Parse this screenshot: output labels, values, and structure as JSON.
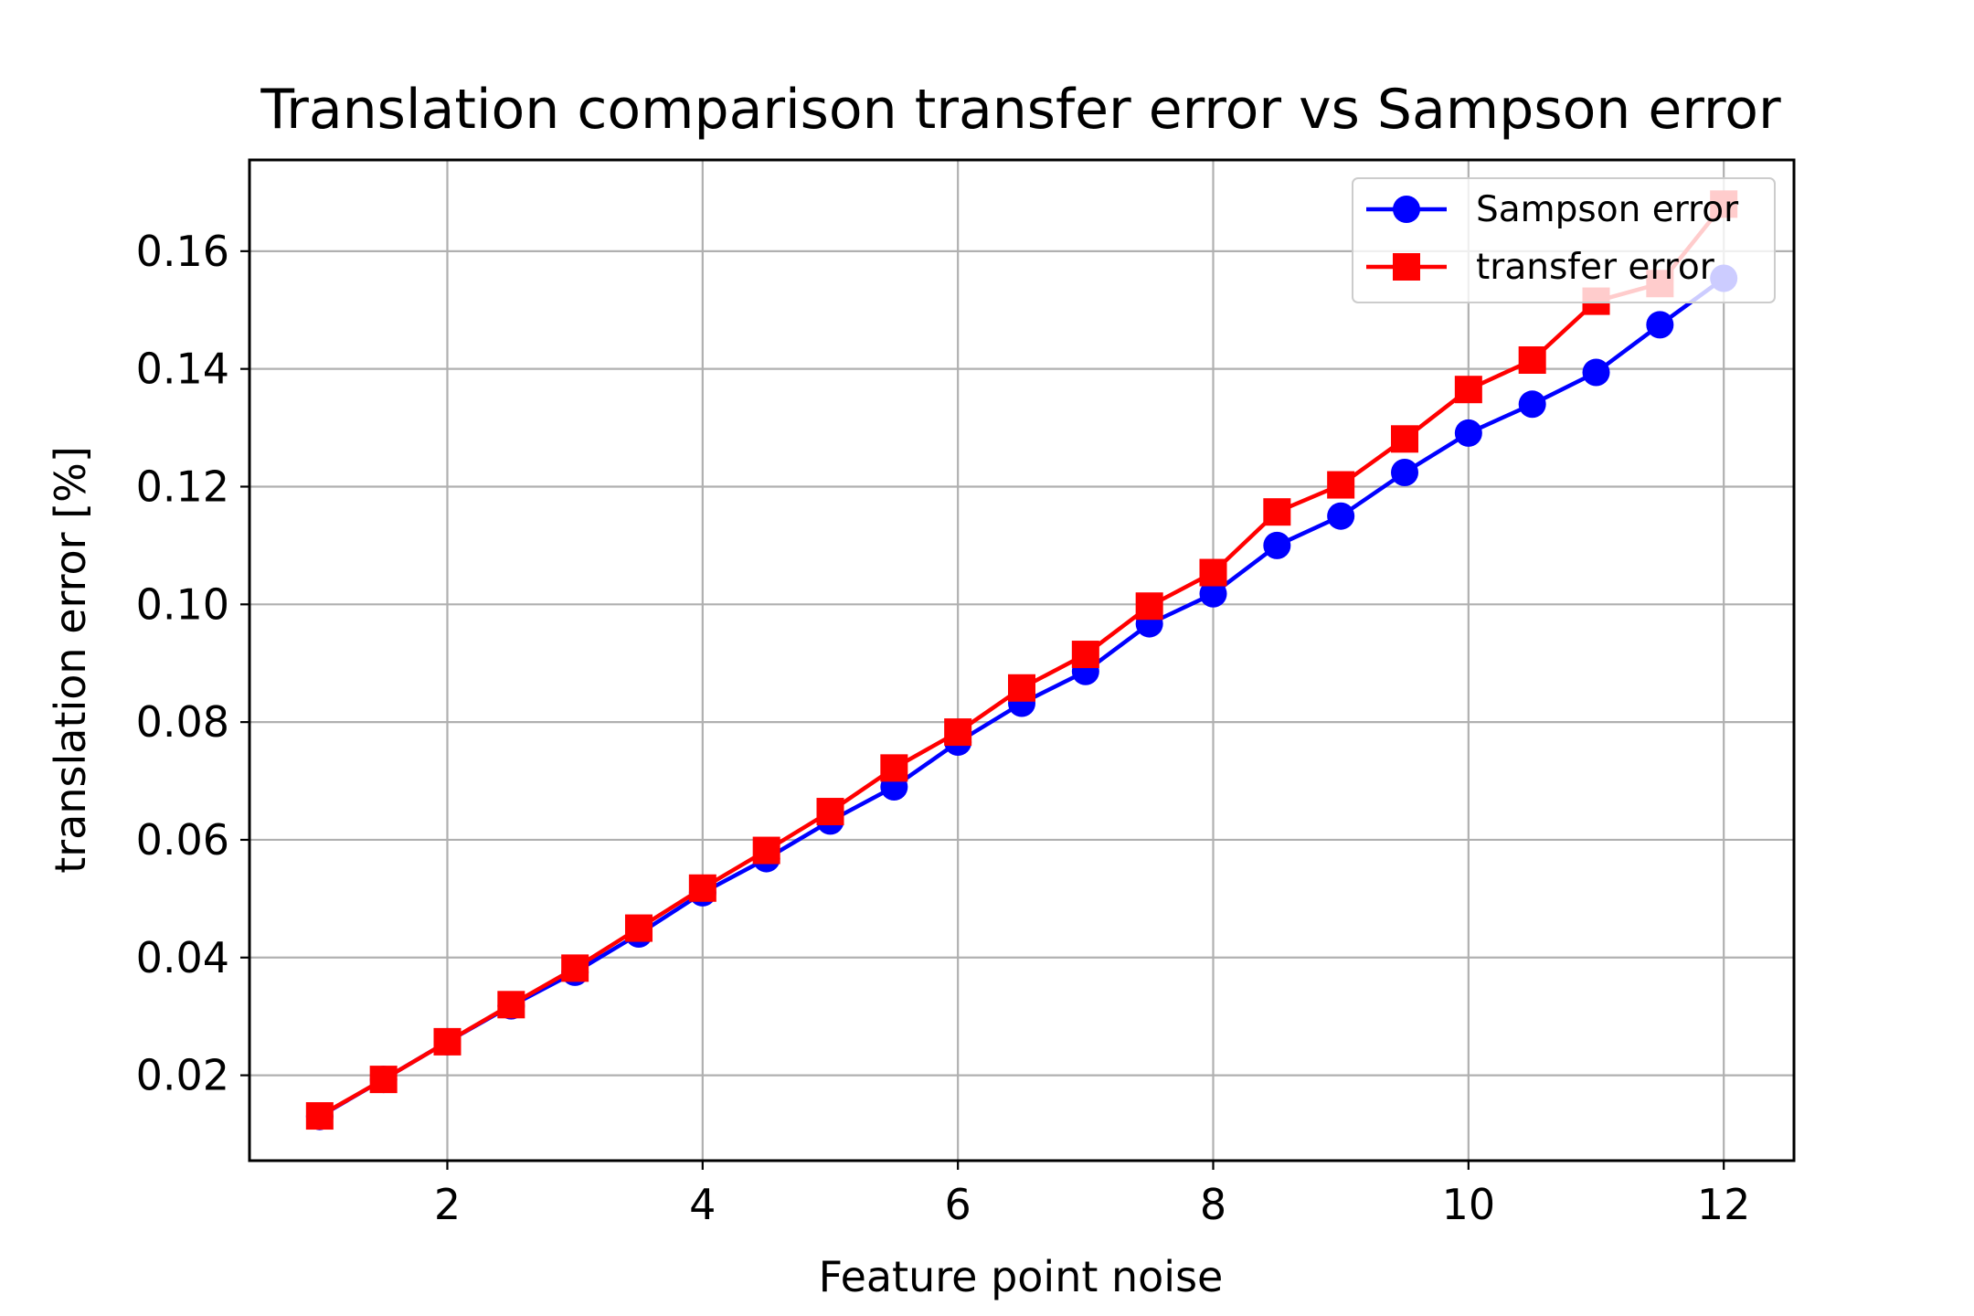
{
  "chart_data": {
    "type": "line",
    "title": "Translation comparison transfer error vs Sampson error",
    "xlabel": "Feature point noise",
    "ylabel": "translation error [%]",
    "xlim": [
      0.45,
      12.55
    ],
    "ylim": [
      0.0055,
      0.1755
    ],
    "x_ticks": [
      2,
      4,
      6,
      8,
      10,
      12
    ],
    "x_tick_labels": [
      "2",
      "4",
      "6",
      "8",
      "10",
      "12"
    ],
    "y_ticks": [
      0.02,
      0.04,
      0.06,
      0.08,
      0.1,
      0.12,
      0.14,
      0.16
    ],
    "y_tick_labels": [
      "0.02",
      "0.04",
      "0.06",
      "0.08",
      "0.10",
      "0.12",
      "0.14",
      "0.16"
    ],
    "grid": true,
    "legend_position": "top-right",
    "x": [
      1,
      1.5,
      2,
      2.5,
      3,
      3.5,
      4,
      4.5,
      5,
      5.5,
      6,
      6.5,
      7,
      7.5,
      8,
      8.5,
      9,
      9.5,
      10,
      10.5,
      11,
      11.5,
      12
    ],
    "series": [
      {
        "name": "Sampson error",
        "color": "#0000ff",
        "marker": "circle",
        "values": [
          0.013,
          0.0193,
          0.0257,
          0.0318,
          0.0375,
          0.044,
          0.051,
          0.0568,
          0.0632,
          0.069,
          0.0766,
          0.0832,
          0.0886,
          0.0967,
          0.1018,
          0.11,
          0.115,
          0.1224,
          0.1291,
          0.134,
          0.1394,
          0.1475,
          0.1554
        ]
      },
      {
        "name": "transfer error",
        "color": "#ff0000",
        "marker": "square",
        "values": [
          0.0131,
          0.0193,
          0.0257,
          0.032,
          0.0382,
          0.045,
          0.0518,
          0.0582,
          0.0648,
          0.0722,
          0.0783,
          0.0858,
          0.0915,
          0.0997,
          0.1054,
          0.1157,
          0.1203,
          0.1281,
          0.1365,
          0.1415,
          0.1515,
          0.1545,
          0.168
        ]
      }
    ]
  }
}
